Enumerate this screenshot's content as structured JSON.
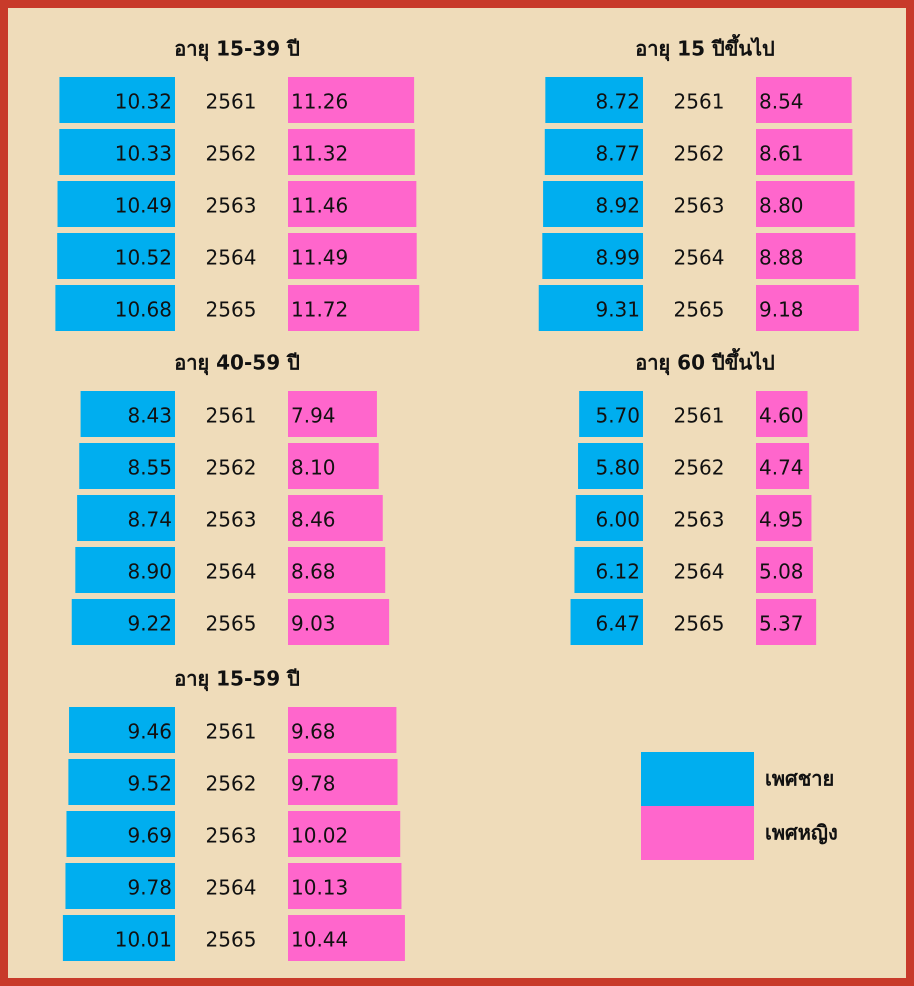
{
  "chart_data": [
    {
      "type": "butterfly",
      "title": "อายุ 15-39 ปี",
      "categories": [
        "2561",
        "2562",
        "2563",
        "2564",
        "2565"
      ],
      "series": [
        {
          "values": [
            10.32,
            10.33,
            10.49,
            10.52,
            10.68
          ],
          "value_labels": [
            "10.32",
            "10.33",
            "10.49",
            "10.52",
            "10.68"
          ]
        },
        {
          "values": [
            11.26,
            11.32,
            11.46,
            11.49,
            11.72
          ],
          "value_labels": [
            "11.26",
            "11.32",
            "11.46",
            "11.49",
            "11.72"
          ]
        }
      ]
    },
    {
      "type": "butterfly",
      "title": "อายุ 15 ปีขึ้นไป",
      "categories": [
        "2561",
        "2562",
        "2563",
        "2564",
        "2565"
      ],
      "series": [
        {
          "values": [
            8.72,
            8.77,
            8.92,
            8.99,
            9.31
          ],
          "value_labels": [
            "8.72",
            "8.77",
            "8.92",
            "8.99",
            "9.31"
          ]
        },
        {
          "values": [
            8.54,
            8.61,
            8.8,
            8.88,
            9.18
          ],
          "value_labels": [
            "8.54",
            "8.61",
            "8.80",
            "8.88",
            "9.18"
          ]
        }
      ]
    },
    {
      "type": "butterfly",
      "title": "อายุ 40-59 ปี",
      "categories": [
        "2561",
        "2562",
        "2563",
        "2564",
        "2565"
      ],
      "series": [
        {
          "values": [
            8.43,
            8.55,
            8.74,
            8.9,
            9.22
          ],
          "value_labels": [
            "8.43",
            "8.55",
            "8.74",
            "8.90",
            "9.22"
          ]
        },
        {
          "values": [
            7.94,
            8.1,
            8.46,
            8.68,
            9.03
          ],
          "value_labels": [
            "7.94",
            "8.10",
            "8.46",
            "8.68",
            "9.03"
          ]
        }
      ]
    },
    {
      "type": "butterfly",
      "title": "อายุ 60 ปีขึ้นไป",
      "categories": [
        "2561",
        "2562",
        "2563",
        "2564",
        "2565"
      ],
      "series": [
        {
          "values": [
            5.7,
            5.8,
            6.0,
            6.12,
            6.47
          ],
          "value_labels": [
            "5.70",
            "5.80",
            "6.00",
            "6.12",
            "6.47"
          ]
        },
        {
          "values": [
            4.6,
            4.74,
            4.95,
            5.08,
            5.37
          ],
          "value_labels": [
            "4.60",
            "4.74",
            "4.95",
            "5.08",
            "5.37"
          ]
        }
      ]
    },
    {
      "type": "butterfly",
      "title": "อายุ 15-59 ปี",
      "categories": [
        "2561",
        "2562",
        "2563",
        "2564",
        "2565"
      ],
      "series": [
        {
          "values": [
            9.46,
            9.52,
            9.69,
            9.78,
            10.01
          ],
          "value_labels": [
            "9.46",
            "9.52",
            "9.69",
            "9.78",
            "10.01"
          ]
        },
        {
          "values": [
            9.68,
            9.78,
            10.02,
            10.13,
            10.44
          ],
          "value_labels": [
            "9.68",
            "9.78",
            "10.02",
            "10.13",
            "10.44"
          ]
        }
      ]
    }
  ],
  "legend": {
    "entries": [
      {
        "name": "เพศชาย",
        "color": "#00aeef"
      },
      {
        "name": "เพศหญิง",
        "color": "#ff66cc"
      }
    ]
  }
}
